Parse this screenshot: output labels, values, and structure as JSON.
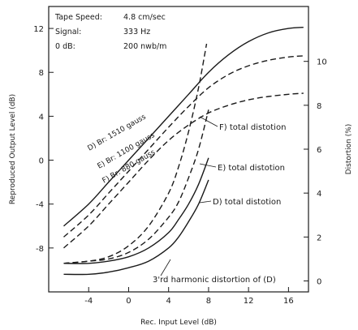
{
  "chart_data": {
    "type": "line",
    "info": [
      {
        "key": "Tape Speed:",
        "value": "4.8 cm/sec"
      },
      {
        "key": "Signal:",
        "value": "333 Hz"
      },
      {
        "key": "0 dB:",
        "value": "200 nwb/m"
      }
    ],
    "xlabel": "Rec. Input Level (dB)",
    "ylabel_left": "Reproduced Output Level (dB)",
    "ylabel_right": "Distortion (%)",
    "xlim": [
      -8,
      18
    ],
    "ylim_left": [
      -12,
      14
    ],
    "ylim_right": [
      -0.5,
      12.5
    ],
    "x_ticks": [
      -4,
      0,
      4,
      8,
      12,
      16
    ],
    "y_left_ticks": [
      12,
      8,
      4,
      0,
      -4,
      -8
    ],
    "y_right_ticks": [
      10,
      8,
      6,
      4,
      2,
      0
    ],
    "output_series": [
      {
        "name": "D) Br: 1510 gauss",
        "style": "solid",
        "x": [
          -6.5,
          -4,
          -2,
          0,
          2,
          4,
          6,
          8,
          10,
          12,
          14,
          16,
          17.5
        ],
        "y": [
          -6.0,
          -4.0,
          -2.0,
          0.0,
          2.0,
          4.0,
          6.0,
          8.0,
          9.6,
          10.8,
          11.6,
          12.0,
          12.1
        ]
      },
      {
        "name": "E) Br: 1100 gauss",
        "style": "dashed",
        "x": [
          -6.5,
          -4,
          -2,
          0,
          2,
          4,
          6,
          8,
          10,
          12,
          14,
          16,
          17.5
        ],
        "y": [
          -7.0,
          -5.0,
          -3.0,
          -1.0,
          1.0,
          3.0,
          4.9,
          6.6,
          7.8,
          8.6,
          9.1,
          9.4,
          9.5
        ]
      },
      {
        "name": "F) Br: 880 gauss",
        "style": "dashed",
        "x": [
          -6.5,
          -4,
          -2,
          0,
          2,
          4,
          6,
          8,
          10,
          12,
          14,
          16,
          17.5
        ],
        "y": [
          -8.0,
          -6.0,
          -4.0,
          -2.0,
          0.0,
          1.8,
          3.2,
          4.3,
          5.0,
          5.5,
          5.8,
          6.0,
          6.1
        ]
      }
    ],
    "distortion_series": [
      {
        "name": "F) total distotion",
        "style": "dashed",
        "x": [
          -6.5,
          -4,
          -2,
          0,
          2,
          4,
          5,
          6,
          7,
          7.8
        ],
        "y": [
          0.8,
          0.9,
          1.1,
          1.6,
          2.5,
          4.0,
          5.2,
          6.8,
          8.8,
          10.8
        ]
      },
      {
        "name": "E) total distotion",
        "style": "dashed",
        "x": [
          -6.5,
          -4,
          -2,
          0,
          2,
          4,
          5,
          6,
          7,
          8
        ],
        "y": [
          0.8,
          0.9,
          1.0,
          1.3,
          1.9,
          2.9,
          3.6,
          4.7,
          6.0,
          7.8
        ]
      },
      {
        "name": "D) total distotion",
        "style": "solid",
        "x": [
          -6.5,
          -4,
          -2,
          0,
          2,
          4,
          5,
          6,
          7,
          8
        ],
        "y": [
          0.8,
          0.8,
          0.9,
          1.1,
          1.5,
          2.2,
          2.8,
          3.5,
          4.4,
          5.6
        ]
      },
      {
        "name": "3'rd harmonic distortion of (D)",
        "style": "solid",
        "x": [
          -6.5,
          -4,
          -2,
          0,
          2,
          4,
          5,
          6,
          7,
          8
        ],
        "y": [
          0.3,
          0.3,
          0.4,
          0.6,
          0.9,
          1.5,
          2.0,
          2.7,
          3.5,
          4.6
        ]
      }
    ]
  }
}
